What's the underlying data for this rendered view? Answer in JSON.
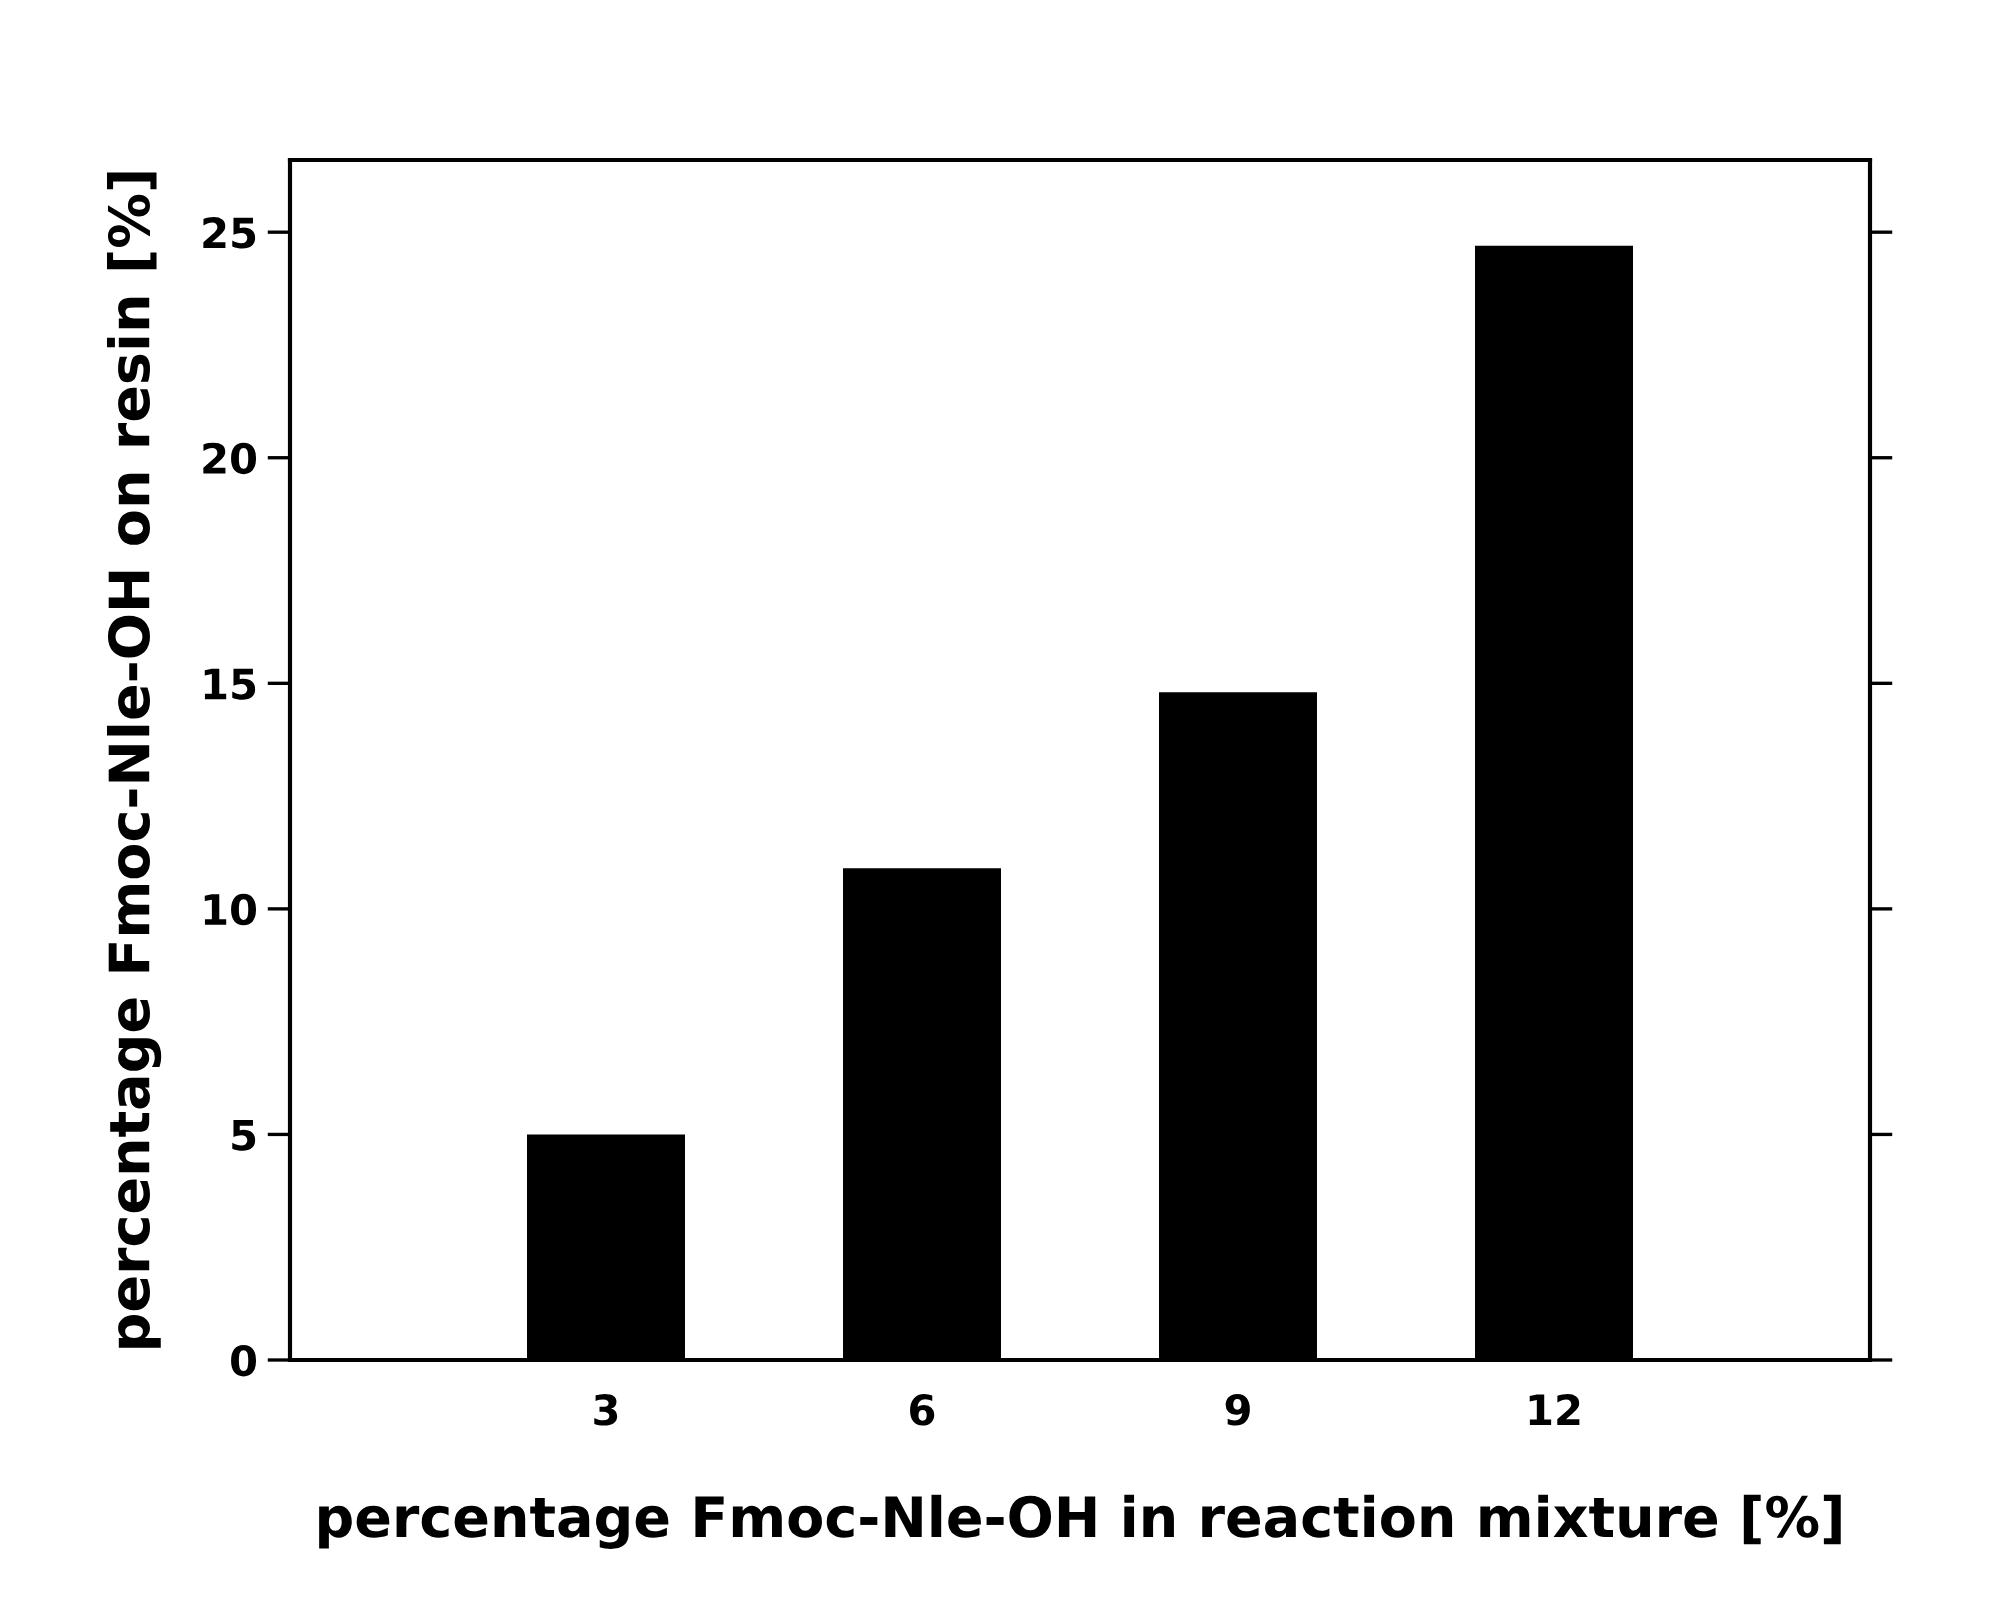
{
  "chart_data": {
    "type": "bar",
    "xlabel": "percentage Fmoc-Nle-OH in reaction mixture [%]",
    "ylabel": "percentage Fmoc-Nle-OH on resin [%]",
    "categories": [
      "3",
      "6",
      "9",
      "12"
    ],
    "values": [
      5.0,
      10.9,
      14.8,
      24.7
    ],
    "color": "#000000",
    "ylim": [
      0,
      26.6
    ],
    "yticks": [
      0,
      5,
      10,
      15,
      20,
      25
    ],
    "grid": false,
    "legend": false
  }
}
